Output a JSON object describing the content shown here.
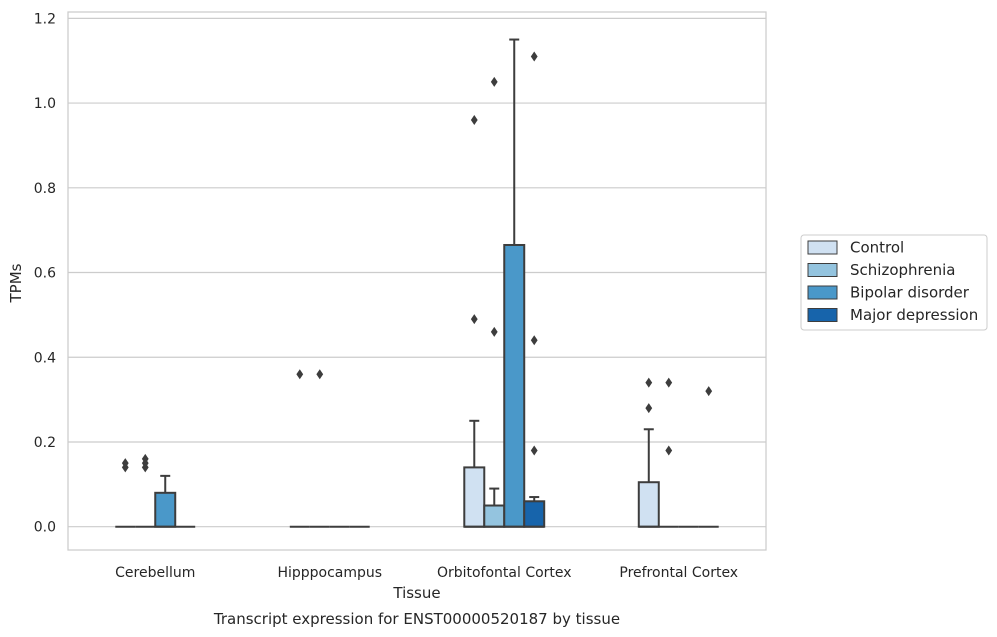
{
  "chart_data": {
    "type": "box",
    "title": "",
    "caption": "Transcript expression for ENST00000520187 by tissue",
    "xlabel": "Tissue",
    "ylabel": "TPMs",
    "ylim": [
      -0.055,
      1.215
    ],
    "yticks": [
      "0.0",
      "0.2",
      "0.4",
      "0.6",
      "0.8",
      "1.0",
      "1.2"
    ],
    "grid": true,
    "legend_position": "right",
    "categories": [
      "Cerebellum",
      "Hipppocampus",
      "Orbitofontal Cortex",
      "Prefrontal Cortex"
    ],
    "series": [
      {
        "name": "Control",
        "color": "#d0e1f2",
        "boxes": [
          {
            "q1": 0,
            "median": 0,
            "q3": 0,
            "whisker_low": 0,
            "whisker_high": 0,
            "outliers": [
              0.14,
              0.15
            ]
          },
          {
            "q1": 0,
            "median": 0,
            "q3": 0,
            "whisker_low": 0,
            "whisker_high": 0,
            "outliers": [
              0.36
            ]
          },
          {
            "q1": 0,
            "median": 0,
            "q3": 0.14,
            "whisker_low": 0,
            "whisker_high": 0.25,
            "outliers": [
              0.49,
              0.96
            ]
          },
          {
            "q1": 0,
            "median": 0,
            "q3": 0.105,
            "whisker_low": 0,
            "whisker_high": 0.23,
            "outliers": [
              0.28,
              0.34
            ]
          }
        ]
      },
      {
        "name": "Schizophrenia",
        "color": "#94c4df",
        "boxes": [
          {
            "q1": 0,
            "median": 0,
            "q3": 0,
            "whisker_low": 0,
            "whisker_high": 0,
            "outliers": [
              0.14,
              0.15,
              0.16
            ]
          },
          {
            "q1": 0,
            "median": 0,
            "q3": 0,
            "whisker_low": 0,
            "whisker_high": 0,
            "outliers": [
              0.36
            ]
          },
          {
            "q1": 0,
            "median": 0,
            "q3": 0.05,
            "whisker_low": 0,
            "whisker_high": 0.09,
            "outliers": [
              0.46,
              1.05
            ]
          },
          {
            "q1": 0,
            "median": 0,
            "q3": 0,
            "whisker_low": 0,
            "whisker_high": 0,
            "outliers": [
              0.18,
              0.34
            ]
          }
        ]
      },
      {
        "name": "Bipolar disorder",
        "color": "#4a98c9",
        "boxes": [
          {
            "q1": 0,
            "median": 0,
            "q3": 0.08,
            "whisker_low": 0,
            "whisker_high": 0.12,
            "outliers": []
          },
          {
            "q1": 0,
            "median": 0,
            "q3": 0,
            "whisker_low": 0,
            "whisker_high": 0,
            "outliers": []
          },
          {
            "q1": 0,
            "median": 0,
            "q3": 0.665,
            "whisker_low": 0,
            "whisker_high": 1.15,
            "outliers": []
          },
          {
            "q1": 0,
            "median": 0,
            "q3": 0,
            "whisker_low": 0,
            "whisker_high": 0,
            "outliers": []
          }
        ]
      },
      {
        "name": "Major depression",
        "color": "#1764ab",
        "boxes": [
          {
            "q1": 0,
            "median": 0,
            "q3": 0,
            "whisker_low": 0,
            "whisker_high": 0,
            "outliers": []
          },
          {
            "q1": 0,
            "median": 0,
            "q3": 0,
            "whisker_low": 0,
            "whisker_high": 0,
            "outliers": []
          },
          {
            "q1": 0,
            "median": 0,
            "q3": 0.06,
            "whisker_low": 0,
            "whisker_high": 0.07,
            "outliers": [
              0.18,
              0.44,
              1.11
            ]
          },
          {
            "q1": 0,
            "median": 0,
            "q3": 0,
            "whisker_low": 0,
            "whisker_high": 0,
            "outliers": [
              0.32
            ]
          }
        ]
      }
    ]
  }
}
